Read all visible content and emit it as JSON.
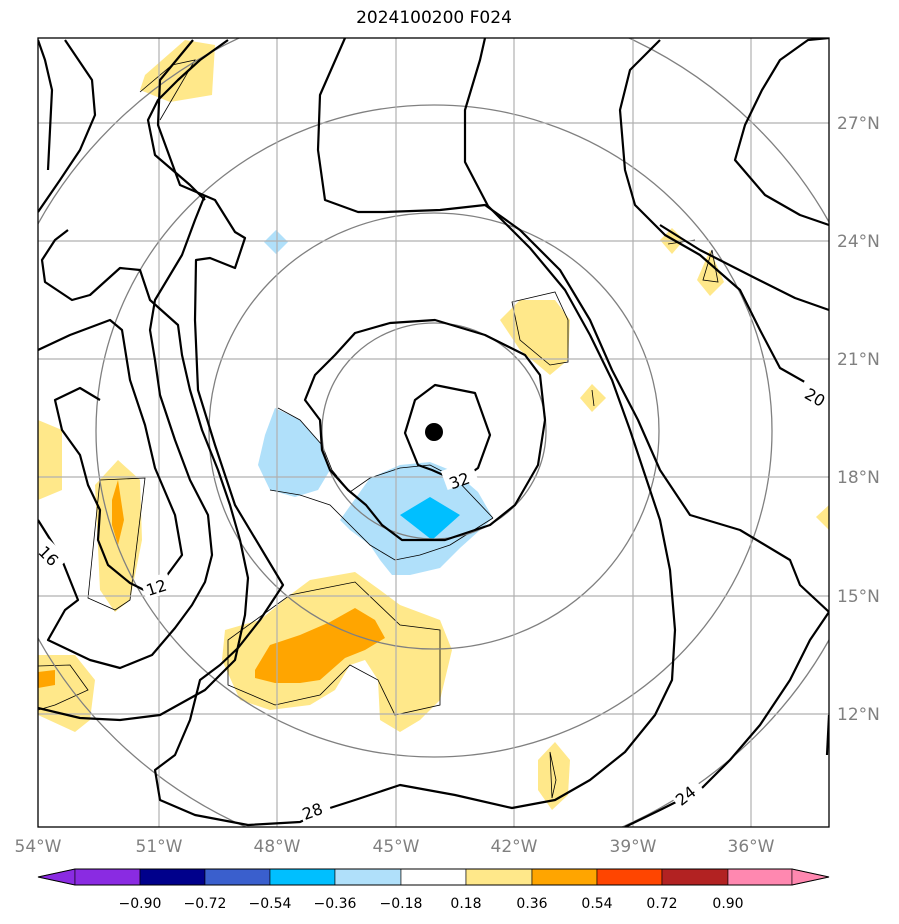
{
  "title": "2024100200 F024",
  "map": {
    "lon_labels": [
      "54°W",
      "51°W",
      "48°W",
      "45°W",
      "42°W",
      "39°W",
      "36°W"
    ],
    "lat_labels": [
      "27°N",
      "24°N",
      "21°N",
      "18°N",
      "15°N",
      "12°N"
    ],
    "contour_labels": [
      "12",
      "16",
      "20",
      "24",
      "28",
      "32"
    ],
    "storm_center": {
      "lon": "44°W",
      "lat": "19.2°N"
    }
  },
  "colorbar": {
    "ticks": [
      "−0.90",
      "−0.72",
      "−0.54",
      "−0.36",
      "−0.18",
      "0.18",
      "0.36",
      "0.54",
      "0.72",
      "0.90"
    ],
    "colors": [
      "#8a2be2",
      "#00008b",
      "#3a5fcd",
      "#00bfff",
      "#b0e0fa",
      "#ffffff",
      "#ffe88a",
      "#ffa500",
      "#ff4500",
      "#b22222",
      "#ff88b0"
    ]
  }
}
